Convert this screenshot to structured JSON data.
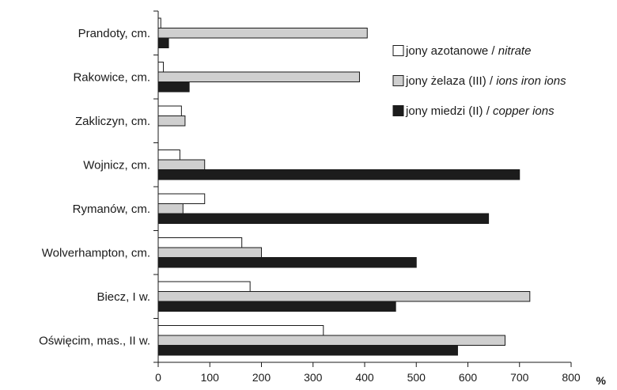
{
  "chart_data": {
    "type": "bar",
    "orientation": "horizontal",
    "categories": [
      "Prandoty, cm.",
      "Rakowice, cm.",
      "Zakliczyn, cm.",
      "Wojnicz, cm.",
      "Rymanów, cm.",
      "Wolverhampton, cm.",
      "Biecz, I w.",
      "Oświęcim, mas., II w."
    ],
    "series": [
      {
        "name_plain": "jony azotanowe / ",
        "name_italic": "nitrate",
        "color": "#ffffff",
        "values": [
          5,
          10,
          45,
          42,
          90,
          162,
          178,
          320
        ]
      },
      {
        "name_plain": "jony żelaza (III) / ",
        "name_italic": "ions iron ions",
        "color": "#cfcfcf",
        "values": [
          405,
          390,
          52,
          90,
          48,
          200,
          720,
          672
        ]
      },
      {
        "name_plain": "jony miedzi (II) / ",
        "name_italic": "copper ions",
        "color": "#1c1c1c",
        "values": [
          20,
          60,
          null,
          700,
          640,
          500,
          460,
          580
        ]
      }
    ],
    "xlim": [
      0,
      800
    ],
    "xticks": [
      "0",
      "100",
      "200",
      "300",
      "400",
      "500",
      "600",
      "700",
      "800"
    ],
    "xunit": "%",
    "legend_position": "upper-right",
    "grid": false
  }
}
